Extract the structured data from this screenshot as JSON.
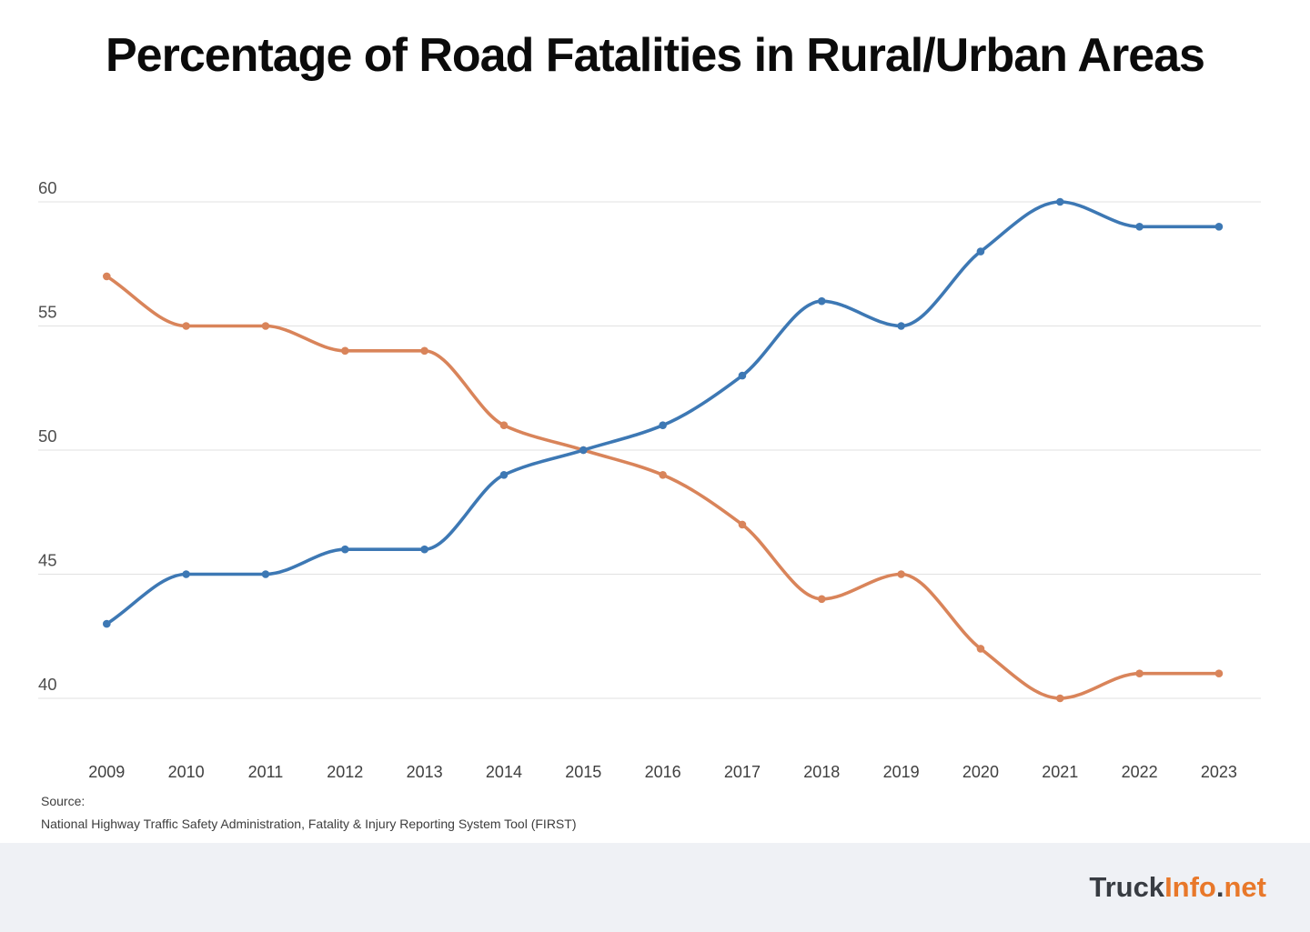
{
  "title": "Percentage of Road Fatalities in Rural/Urban Areas",
  "source": {
    "label": "Source:",
    "text": "National Highway Traffic Safety Administration, Fatality & Injury Reporting System Tool (FIRST)"
  },
  "brand": {
    "truck": "Truck",
    "info": "Info",
    "dot": ".",
    "net": "net"
  },
  "colors": {
    "blue": "#3d78b4",
    "orange": "#d9845a",
    "grid": "#e2e2e2",
    "y_label": "#4d4d4d",
    "x_label": "#3f3f3f",
    "footer_bg": "#eff1f5",
    "brand_dark": "#383c42",
    "brand_orange": "#e8782a"
  },
  "chart_data": {
    "type": "line",
    "title": "Percentage of Road Fatalities in Rural/Urban Areas",
    "xlabel": "",
    "ylabel": "",
    "x": [
      "2009",
      "2010",
      "2011",
      "2012",
      "2013",
      "2014",
      "2015",
      "2016",
      "2017",
      "2018",
      "2019",
      "2020",
      "2021",
      "2022",
      "2023"
    ],
    "series": [
      {
        "name": "blue",
        "color_key": "blue",
        "values": [
          43,
          45,
          45,
          46,
          46,
          49,
          50,
          51,
          53,
          56,
          55,
          58,
          60,
          59,
          59
        ]
      },
      {
        "name": "orange",
        "color_key": "orange",
        "values": [
          57,
          55,
          55,
          54,
          54,
          51,
          50,
          49,
          47,
          44,
          45,
          42,
          40,
          41,
          41
        ]
      }
    ],
    "yticks": [
      40,
      45,
      50,
      55,
      60
    ],
    "ylim": [
      40,
      60
    ],
    "grid": true,
    "legend": "none",
    "point_markers": true,
    "smooth": true
  }
}
